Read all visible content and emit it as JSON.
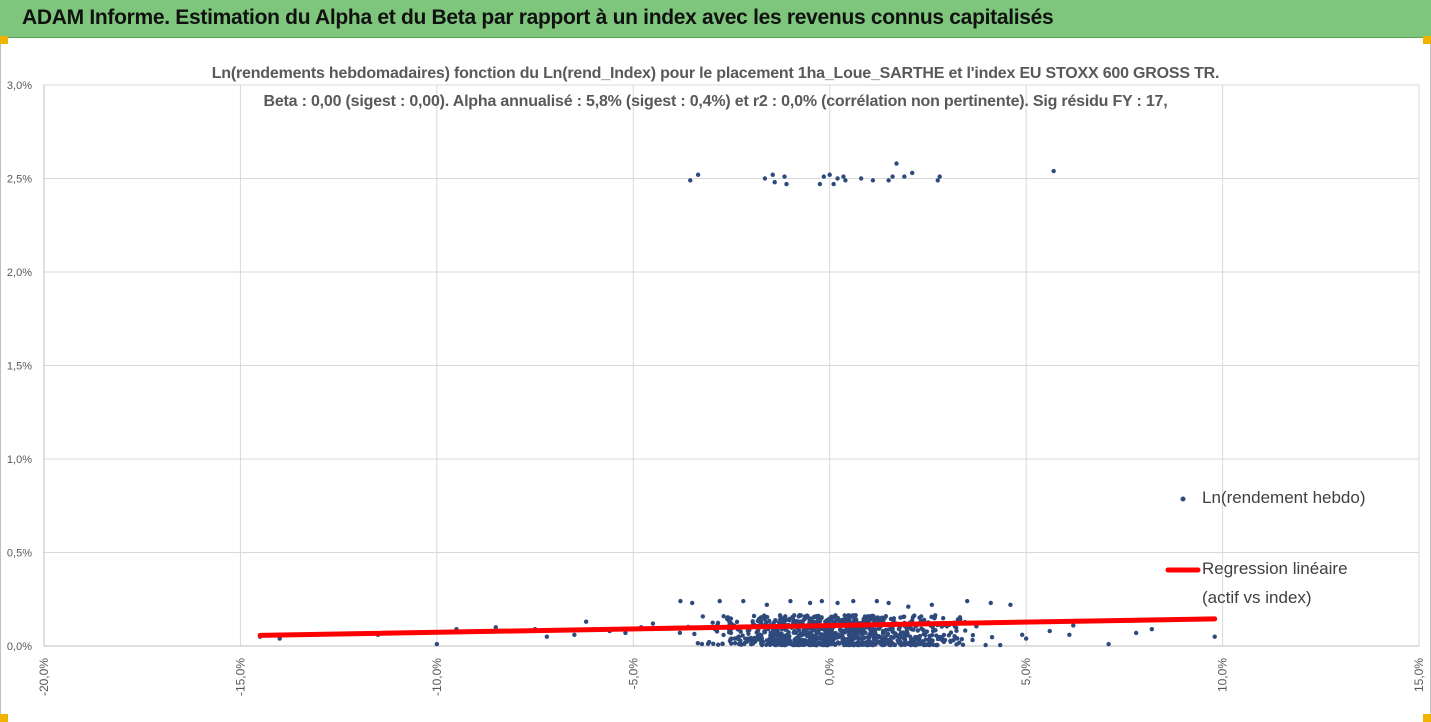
{
  "header": {
    "title": "ADAM Informe. Estimation du Alpha et du Beta par rapport à un index avec les revenus connus capitalisés",
    "background": "#7dc67b"
  },
  "chart_data": {
    "type": "scatter",
    "title": "Ln(rendements hebdomadaires) fonction du Ln(rend_Index) pour le placement 1ha_Loue_SARTHE et l'index EU STOXX 600 GROSS TR.",
    "subtitle": "Beta : 0,00 (sigest : 0,00). Alpha annualisé : 5,8% (sigest : 0,4%) et r2 : 0,0% (corrélation non pertinente). Sig résidu FY : 17,",
    "xlabel": "",
    "ylabel": "",
    "xlim": [
      -0.2,
      0.15
    ],
    "ylim": [
      0.0,
      0.03
    ],
    "x_ticks": [
      "-20,0%",
      "-15,0%",
      "-10,0%",
      "-5,0%",
      "0,0%",
      "5,0%",
      "10,0%",
      "15,0%"
    ],
    "y_ticks": [
      "0,0%",
      "0,5%",
      "1,0%",
      "1,5%",
      "2,0%",
      "2,5%",
      "3,0%"
    ],
    "grid": "vertical and horizontal major gridlines",
    "legend_position": "right",
    "series": [
      {
        "name": "Ln(rendement hebdo)",
        "kind": "points",
        "color": "#2e4a7d",
        "points": [
          [
            -0.0355,
            0.0249
          ],
          [
            -0.0335,
            0.0252
          ],
          [
            -0.0165,
            0.025
          ],
          [
            -0.0145,
            0.0252
          ],
          [
            -0.014,
            0.0248
          ],
          [
            -0.0115,
            0.0251
          ],
          [
            -0.011,
            0.0247
          ],
          [
            -0.0025,
            0.0247
          ],
          [
            -0.0015,
            0.0251
          ],
          [
            0.0,
            0.0252
          ],
          [
            0.001,
            0.0247
          ],
          [
            0.002,
            0.025
          ],
          [
            0.0035,
            0.0251
          ],
          [
            0.004,
            0.0249
          ],
          [
            0.008,
            0.025
          ],
          [
            0.011,
            0.0249
          ],
          [
            0.015,
            0.0249
          ],
          [
            0.016,
            0.0251
          ],
          [
            0.017,
            0.0258
          ],
          [
            0.019,
            0.0251
          ],
          [
            0.021,
            0.0253
          ],
          [
            0.0275,
            0.0249
          ],
          [
            0.028,
            0.0251
          ],
          [
            0.057,
            0.0254
          ],
          [
            -0.145,
            0.0005
          ],
          [
            -0.14,
            0.0004
          ],
          [
            -0.115,
            0.0006
          ],
          [
            -0.1,
            0.0001
          ],
          [
            -0.095,
            0.0009
          ],
          [
            -0.085,
            0.001
          ],
          [
            -0.075,
            0.0009
          ],
          [
            -0.072,
            0.0005
          ],
          [
            -0.065,
            0.0006
          ],
          [
            -0.062,
            0.0013
          ],
          [
            -0.06,
            0.0009
          ],
          [
            -0.056,
            0.0008
          ],
          [
            -0.052,
            0.0007
          ],
          [
            -0.048,
            0.001
          ],
          [
            -0.045,
            0.0012
          ],
          [
            -0.038,
            0.0024
          ],
          [
            -0.035,
            0.0023
          ],
          [
            -0.028,
            0.0024
          ],
          [
            -0.022,
            0.0024
          ],
          [
            -0.016,
            0.0022
          ],
          [
            -0.01,
            0.0024
          ],
          [
            -0.005,
            0.0023
          ],
          [
            -0.002,
            0.0024
          ],
          [
            0.002,
            0.0023
          ],
          [
            0.006,
            0.0024
          ],
          [
            0.012,
            0.0024
          ],
          [
            0.015,
            0.0023
          ],
          [
            0.02,
            0.0021
          ],
          [
            0.026,
            0.0022
          ],
          [
            0.035,
            0.0024
          ],
          [
            0.041,
            0.0023
          ],
          [
            0.046,
            0.0022
          ],
          [
            0.049,
            0.0006
          ],
          [
            0.05,
            0.0004
          ],
          [
            0.056,
            0.0008
          ],
          [
            0.061,
            0.0006
          ],
          [
            0.062,
            0.0011
          ],
          [
            0.071,
            0.0001
          ],
          [
            0.078,
            0.0007
          ],
          [
            0.082,
            0.0009
          ],
          [
            0.098,
            0.0005
          ]
        ]
      },
      {
        "name": "Regression linéaire (actif vs index)",
        "legend_lines": [
          "Regression linéaire",
          "(actif vs index)"
        ],
        "kind": "line",
        "color": "#ff0000",
        "points": [
          [
            -0.145,
            0.00057
          ],
          [
            0.098,
            0.00145
          ]
        ]
      }
    ]
  }
}
